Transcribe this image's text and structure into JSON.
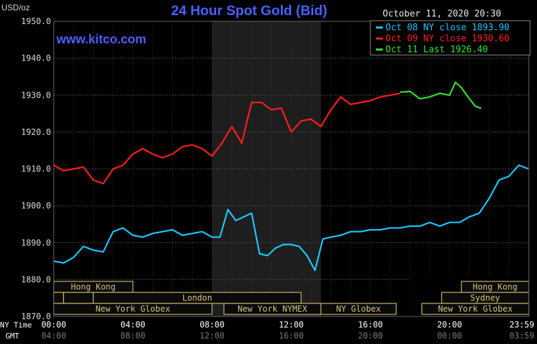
{
  "chart_data": {
    "type": "line",
    "title": "24 Hour Spot Gold (Bid)",
    "ylabel": "USD/oz",
    "watermark": "www.kitco.com",
    "datetime": "October 11, 2020 20:30",
    "ylim": [
      1870,
      1950
    ],
    "y_ticks": [
      "1950.0",
      "1940.0",
      "1930.0",
      "1920.0",
      "1910.0",
      "1900.0",
      "1890.0",
      "1880.0",
      "1870.0"
    ],
    "y_tick_values": [
      1950,
      1940,
      1930,
      1920,
      1910,
      1900,
      1890,
      1880,
      1870
    ],
    "xlim": [
      0,
      24
    ],
    "x_tick_values": [
      0,
      4,
      8,
      12,
      16,
      20,
      24
    ],
    "x_ticks_ny": [
      "00:00",
      "04:00",
      "08:00",
      "12:00",
      "16:00",
      "20:00",
      "23:59"
    ],
    "x_ticks_gmt": [
      "04:00",
      "08:00",
      "12:00",
      "16:00",
      "20:00",
      "00:00",
      "03:59"
    ],
    "x_row_labels": {
      "ny": "NY Time",
      "gmt": "GMT"
    },
    "grid": true,
    "legend_position": "top-right",
    "shaded_region": [
      8,
      13.5
    ],
    "series": [
      {
        "name": "Oct 08 NY close 1893.90",
        "color": "#1ec8ff",
        "x": [
          0,
          0.5,
          1,
          1.5,
          2,
          2.5,
          3,
          3.5,
          4,
          4.5,
          5,
          5.5,
          6,
          6.5,
          7,
          7.5,
          8,
          8.4,
          8.8,
          9.2,
          9.6,
          10,
          10.4,
          10.8,
          11.2,
          11.6,
          12,
          12.4,
          12.8,
          13.2,
          13.6,
          14,
          14.5,
          15,
          15.5,
          16,
          16.5,
          17,
          17.5,
          18,
          18.5,
          19,
          19.5,
          20,
          20.5,
          21,
          21.5,
          22,
          22.5,
          23,
          23.5,
          24
        ],
        "y": [
          1885,
          1884.5,
          1886,
          1889,
          1888,
          1887.5,
          1893,
          1894,
          1892,
          1891.5,
          1892.5,
          1893,
          1893.5,
          1892,
          1892.5,
          1893,
          1891.5,
          1891.5,
          1899,
          1896,
          1897,
          1898,
          1887,
          1886.5,
          1888.5,
          1889.5,
          1889.5,
          1889,
          1886.5,
          1882.5,
          1891,
          1891.5,
          1892,
          1893,
          1893,
          1893.5,
          1893.5,
          1894,
          1894,
          1894.5,
          1894.5,
          1895.5,
          1894.5,
          1895.5,
          1895.5,
          1897,
          1898,
          1902,
          1907,
          1908,
          1911,
          1910
        ]
      },
      {
        "name": "Oct 09 NY close 1930.60",
        "color": "#ff1e1e",
        "x": [
          0,
          0.5,
          1,
          1.5,
          2,
          2.5,
          3,
          3.5,
          4,
          4.5,
          5,
          5.5,
          6,
          6.5,
          7,
          7.5,
          8,
          8.5,
          9,
          9.5,
          10,
          10.5,
          11,
          11.5,
          12,
          12.5,
          13,
          13.5,
          14,
          14.5,
          15,
          15.5,
          16,
          16.5,
          17,
          17.5
        ],
        "y": [
          1911,
          1909.5,
          1910,
          1910.5,
          1907,
          1906,
          1910,
          1911,
          1914,
          1915.5,
          1914,
          1913,
          1914,
          1916,
          1916.5,
          1915.5,
          1913.5,
          1917,
          1921.5,
          1917,
          1928,
          1928,
          1926,
          1926.5,
          1920,
          1923,
          1923.5,
          1921.5,
          1926,
          1929.5,
          1927.5,
          1928,
          1928.5,
          1929.5,
          1930,
          1930.5
        ]
      },
      {
        "name": "Oct 11 Last 1926.40",
        "color": "#2ee62e",
        "x": [
          17.5,
          18,
          18.5,
          19,
          19.5,
          20,
          20.3,
          20.6,
          21,
          21.3,
          21.6
        ],
        "y": [
          1930.8,
          1931,
          1929,
          1929.5,
          1930.5,
          1930,
          1933.5,
          1932,
          1929,
          1927,
          1926.4
        ]
      }
    ],
    "sessions": [
      {
        "label": "Hong Kong",
        "start": 0,
        "end": 4
      },
      {
        "label": "",
        "start": 0,
        "end": 0.5
      },
      {
        "label": "",
        "start": 0.5,
        "end": 2
      },
      {
        "label": "London",
        "start": 2,
        "end": 12.5
      },
      {
        "label": "New York Globex",
        "start": 0,
        "end": 8
      },
      {
        "label": "New York NYMEX",
        "start": 8.6,
        "end": 13.5
      },
      {
        "label": "NY Globex",
        "start": 13.5,
        "end": 17.3
      },
      {
        "label": "",
        "start": 18,
        "end": 24
      },
      {
        "label": "Hong Kong",
        "start": 20.6,
        "end": 24
      },
      {
        "label": "Sydney",
        "start": 19.6,
        "end": 24
      },
      {
        "label": "New York Globex",
        "start": 18.6,
        "end": 24
      }
    ]
  }
}
